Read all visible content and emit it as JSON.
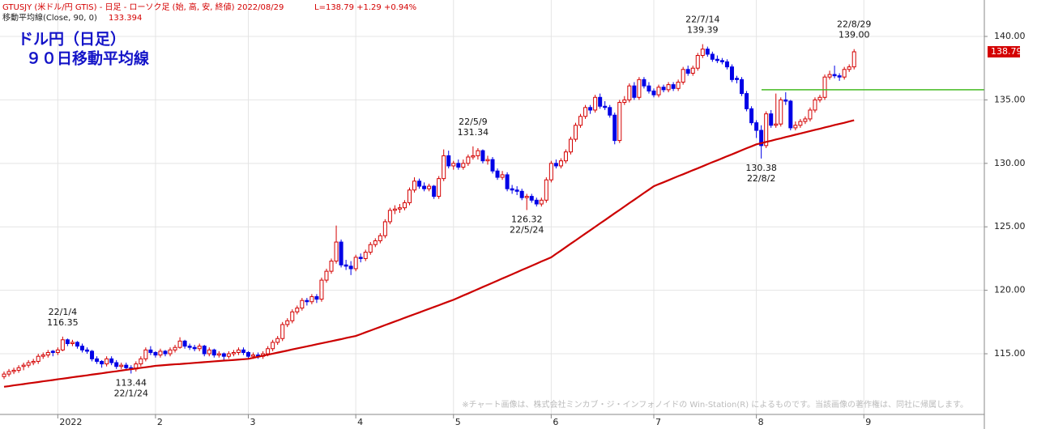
{
  "header": {
    "symbol": "GTUSJY (米ドル/円 GTIS) - 日足 - ローソク足 (始, 高, 安, 終値)  2022/08/29",
    "quote": "L=138.79 +1.29 +0.94%"
  },
  "overlay_title": [
    "ドル円（日足）",
    "９０日移動平均線"
  ],
  "footnote": "※チャート画像は、株式会社ミンカブ・ジ・インフォノイドの Win-Station(R) によるものです。当該画像の著作権は、同社に帰属します。",
  "chart_data": {
    "type": "candlestick",
    "up_color": "#d40000",
    "down_color": "#0000e6",
    "ylim": [
      110.22,
      142.87
    ],
    "yticks": [
      {
        "value": 115,
        "label": "115.00"
      },
      {
        "value": 120,
        "label": "120.00"
      },
      {
        "value": 125,
        "label": "125.00"
      },
      {
        "value": 130,
        "label": "130.00"
      },
      {
        "value": 135,
        "label": "135.00"
      },
      {
        "value": 140,
        "label": "140.00"
      }
    ],
    "grid": true,
    "categories": [
      null,
      null,
      null,
      null,
      null,
      null,
      null,
      null,
      null,
      null,
      null,
      "2022",
      null,
      null,
      null,
      null,
      null,
      null,
      null,
      null,
      null,
      null,
      null,
      null,
      null,
      null,
      null,
      null,
      null,
      null,
      null,
      "2",
      null,
      null,
      null,
      null,
      null,
      null,
      null,
      null,
      null,
      null,
      null,
      null,
      null,
      null,
      null,
      null,
      null,
      null,
      "3",
      null,
      null,
      null,
      null,
      null,
      null,
      null,
      null,
      null,
      null,
      null,
      null,
      null,
      null,
      null,
      null,
      null,
      null,
      null,
      null,
      null,
      "4",
      null,
      null,
      null,
      null,
      null,
      null,
      null,
      null,
      null,
      null,
      null,
      null,
      null,
      null,
      null,
      null,
      null,
      null,
      null,
      "5",
      null,
      null,
      null,
      null,
      null,
      null,
      null,
      null,
      null,
      null,
      null,
      null,
      null,
      null,
      null,
      null,
      null,
      null,
      null,
      "6",
      null,
      null,
      null,
      null,
      null,
      null,
      null,
      null,
      null,
      null,
      null,
      null,
      null,
      null,
      null,
      null,
      null,
      null,
      null,
      null,
      "7",
      null,
      null,
      null,
      null,
      null,
      null,
      null,
      null,
      null,
      null,
      null,
      null,
      null,
      null,
      null,
      null,
      null,
      null,
      null,
      null,
      "8",
      null,
      null,
      null,
      null,
      null,
      null,
      null,
      null,
      null,
      null,
      null,
      null,
      null,
      null,
      null,
      null,
      null,
      null,
      null,
      null,
      null,
      "9"
    ],
    "ohlc": [
      [
        113.2,
        113.6,
        113.0,
        113.4
      ],
      [
        113.4,
        113.8,
        113.2,
        113.6
      ],
      [
        113.6,
        113.9,
        113.4,
        113.7
      ],
      [
        113.7,
        114.1,
        113.5,
        113.9
      ],
      [
        114.0,
        114.3,
        113.7,
        114.1
      ],
      [
        114.1,
        114.5,
        113.9,
        114.3
      ],
      [
        114.3,
        114.6,
        114.1,
        114.4
      ],
      [
        114.4,
        115.0,
        114.2,
        114.8
      ],
      [
        114.8,
        115.1,
        114.6,
        114.9
      ],
      [
        114.9,
        115.3,
        114.7,
        115.1
      ],
      [
        115.2,
        115.3,
        114.8,
        115.1
      ],
      [
        115.1,
        115.5,
        114.9,
        115.3
      ],
      [
        115.3,
        116.35,
        115.2,
        116.1
      ],
      [
        116.1,
        116.2,
        115.6,
        115.8
      ],
      [
        115.8,
        116.1,
        115.6,
        115.9
      ],
      [
        115.9,
        116.0,
        115.4,
        115.6
      ],
      [
        115.6,
        115.8,
        115.1,
        115.3
      ],
      [
        115.3,
        115.5,
        115.0,
        115.2
      ],
      [
        115.2,
        115.3,
        114.4,
        114.6
      ],
      [
        114.6,
        114.8,
        114.2,
        114.4
      ],
      [
        114.4,
        114.5,
        113.9,
        114.2
      ],
      [
        114.2,
        114.8,
        114.0,
        114.6
      ],
      [
        114.6,
        114.8,
        114.1,
        114.3
      ],
      [
        114.3,
        114.5,
        113.8,
        114.0
      ],
      [
        114.0,
        114.3,
        113.8,
        114.1
      ],
      [
        114.1,
        114.3,
        113.7,
        113.9
      ],
      [
        113.9,
        114.1,
        113.44,
        113.8
      ],
      [
        113.8,
        114.4,
        113.6,
        114.2
      ],
      [
        114.2,
        114.8,
        114.0,
        114.6
      ],
      [
        114.6,
        115.5,
        114.4,
        115.3
      ],
      [
        115.3,
        115.6,
        114.9,
        115.1
      ],
      [
        115.1,
        115.2,
        114.7,
        114.9
      ],
      [
        114.9,
        115.4,
        114.7,
        115.2
      ],
      [
        115.2,
        115.3,
        114.8,
        115.0
      ],
      [
        115.0,
        115.5,
        114.8,
        115.3
      ],
      [
        115.3,
        115.7,
        115.1,
        115.5
      ],
      [
        115.5,
        116.3,
        115.4,
        116.0
      ],
      [
        116.0,
        116.1,
        115.4,
        115.6
      ],
      [
        115.6,
        115.8,
        115.3,
        115.5
      ],
      [
        115.5,
        115.7,
        115.2,
        115.4
      ],
      [
        115.4,
        115.8,
        115.2,
        115.6
      ],
      [
        115.6,
        115.7,
        114.8,
        115.0
      ],
      [
        115.0,
        115.5,
        114.8,
        115.3
      ],
      [
        115.3,
        115.4,
        114.7,
        114.9
      ],
      [
        114.9,
        115.2,
        114.7,
        115.0
      ],
      [
        115.0,
        115.1,
        114.5,
        114.8
      ],
      [
        114.8,
        115.2,
        114.6,
        115.0
      ],
      [
        115.0,
        115.3,
        114.8,
        115.1
      ],
      [
        115.1,
        115.5,
        114.9,
        115.3
      ],
      [
        115.3,
        115.5,
        114.9,
        115.1
      ],
      [
        115.1,
        115.2,
        114.6,
        114.8
      ],
      [
        114.8,
        115.1,
        114.6,
        114.9
      ],
      [
        114.9,
        115.1,
        114.6,
        114.8
      ],
      [
        114.8,
        115.2,
        114.6,
        115.0
      ],
      [
        115.0,
        115.6,
        114.8,
        115.4
      ],
      [
        115.4,
        116.1,
        115.2,
        115.9
      ],
      [
        115.9,
        116.4,
        115.7,
        116.2
      ],
      [
        116.2,
        117.5,
        116.0,
        117.3
      ],
      [
        117.3,
        117.8,
        117.1,
        117.6
      ],
      [
        117.6,
        118.5,
        117.4,
        118.3
      ],
      [
        118.3,
        118.8,
        118.1,
        118.6
      ],
      [
        118.6,
        119.4,
        118.4,
        119.2
      ],
      [
        119.2,
        119.4,
        118.8,
        119.1
      ],
      [
        119.1,
        119.7,
        118.9,
        119.5
      ],
      [
        119.5,
        119.7,
        119.0,
        119.3
      ],
      [
        119.3,
        121.0,
        119.1,
        120.8
      ],
      [
        120.8,
        121.7,
        120.6,
        121.5
      ],
      [
        121.5,
        122.5,
        121.3,
        122.3
      ],
      [
        122.3,
        125.1,
        122.1,
        123.8
      ],
      [
        123.8,
        124.0,
        121.8,
        122.0
      ],
      [
        122.0,
        122.4,
        121.6,
        121.9
      ],
      [
        121.9,
        122.3,
        121.2,
        121.7
      ],
      [
        121.7,
        122.8,
        121.5,
        122.6
      ],
      [
        122.6,
        122.9,
        122.2,
        122.5
      ],
      [
        122.5,
        123.2,
        122.3,
        123.0
      ],
      [
        123.0,
        123.8,
        122.8,
        123.6
      ],
      [
        123.6,
        124.1,
        123.4,
        123.9
      ],
      [
        123.9,
        124.5,
        123.7,
        124.3
      ],
      [
        124.3,
        125.6,
        124.1,
        125.4
      ],
      [
        125.4,
        126.5,
        125.2,
        126.3
      ],
      [
        126.3,
        126.7,
        126.0,
        126.4
      ],
      [
        126.4,
        126.8,
        126.1,
        126.5
      ],
      [
        126.5,
        127.1,
        126.3,
        126.9
      ],
      [
        126.9,
        128.1,
        126.7,
        127.9
      ],
      [
        127.9,
        128.9,
        127.7,
        128.6
      ],
      [
        128.6,
        128.8,
        128.0,
        128.2
      ],
      [
        128.2,
        128.5,
        127.8,
        128.0
      ],
      [
        128.0,
        128.4,
        127.8,
        128.2
      ],
      [
        128.2,
        128.3,
        127.2,
        127.4
      ],
      [
        127.4,
        129.0,
        127.2,
        128.8
      ],
      [
        128.8,
        131.1,
        128.6,
        130.6
      ],
      [
        130.6,
        131.0,
        129.6,
        129.8
      ],
      [
        129.8,
        130.2,
        129.5,
        130.0
      ],
      [
        130.0,
        130.3,
        129.5,
        129.7
      ],
      [
        129.7,
        130.3,
        129.5,
        130.0
      ],
      [
        130.0,
        130.7,
        129.8,
        130.5
      ],
      [
        130.5,
        131.34,
        130.3,
        130.6
      ],
      [
        130.6,
        131.2,
        130.3,
        131.0
      ],
      [
        131.0,
        131.1,
        130.0,
        130.2
      ],
      [
        130.2,
        130.6,
        129.9,
        130.3
      ],
      [
        130.3,
        130.5,
        129.2,
        129.4
      ],
      [
        129.4,
        129.6,
        128.7,
        128.9
      ],
      [
        128.9,
        129.4,
        128.7,
        129.1
      ],
      [
        129.1,
        129.3,
        127.8,
        128.0
      ],
      [
        128.0,
        128.3,
        127.6,
        127.9
      ],
      [
        127.9,
        128.2,
        127.5,
        127.8
      ],
      [
        127.8,
        128.0,
        127.1,
        127.3
      ],
      [
        127.3,
        127.6,
        126.32,
        127.4
      ],
      [
        127.4,
        127.6,
        126.9,
        127.1
      ],
      [
        127.1,
        127.3,
        126.6,
        126.8
      ],
      [
        126.8,
        127.3,
        126.6,
        127.1
      ],
      [
        127.1,
        128.9,
        126.9,
        128.7
      ],
      [
        128.7,
        130.2,
        128.5,
        130.0
      ],
      [
        130.0,
        130.3,
        129.6,
        129.8
      ],
      [
        129.8,
        130.4,
        129.6,
        130.2
      ],
      [
        130.2,
        131.1,
        130.0,
        130.9
      ],
      [
        130.9,
        132.1,
        130.7,
        131.9
      ],
      [
        131.9,
        133.2,
        131.7,
        133.0
      ],
      [
        133.0,
        133.9,
        132.8,
        133.7
      ],
      [
        133.7,
        134.6,
        133.5,
        134.4
      ],
      [
        134.4,
        134.6,
        133.9,
        134.2
      ],
      [
        134.2,
        135.4,
        134.0,
        135.2
      ],
      [
        135.2,
        135.5,
        134.3,
        134.5
      ],
      [
        134.5,
        134.9,
        134.2,
        134.4
      ],
      [
        134.4,
        134.6,
        133.6,
        133.8
      ],
      [
        133.8,
        134.0,
        131.5,
        131.8
      ],
      [
        131.8,
        135.0,
        131.6,
        134.8
      ],
      [
        134.8,
        135.3,
        134.6,
        135.0
      ],
      [
        135.0,
        136.3,
        134.8,
        136.1
      ],
      [
        136.1,
        136.4,
        135.0,
        135.2
      ],
      [
        135.2,
        136.8,
        135.0,
        136.6
      ],
      [
        136.6,
        136.8,
        135.9,
        136.1
      ],
      [
        136.1,
        136.4,
        135.5,
        135.7
      ],
      [
        135.7,
        135.9,
        135.2,
        135.4
      ],
      [
        135.4,
        136.2,
        135.2,
        136.0
      ],
      [
        136.0,
        136.2,
        135.6,
        135.8
      ],
      [
        135.8,
        136.4,
        135.6,
        136.2
      ],
      [
        136.2,
        136.4,
        135.7,
        135.9
      ],
      [
        135.9,
        136.6,
        135.7,
        136.4
      ],
      [
        136.4,
        137.6,
        136.2,
        137.4
      ],
      [
        137.4,
        137.7,
        136.9,
        137.1
      ],
      [
        137.1,
        137.7,
        136.9,
        137.5
      ],
      [
        137.5,
        138.7,
        137.3,
        138.5
      ],
      [
        138.5,
        139.39,
        138.3,
        139.0
      ],
      [
        139.0,
        139.2,
        138.4,
        138.6
      ],
      [
        138.6,
        138.8,
        138.0,
        138.2
      ],
      [
        138.2,
        138.5,
        137.9,
        138.1
      ],
      [
        138.1,
        138.3,
        137.8,
        138.0
      ],
      [
        138.0,
        138.2,
        137.4,
        137.6
      ],
      [
        137.6,
        137.8,
        136.4,
        136.6
      ],
      [
        136.7,
        136.9,
        136.3,
        136.6
      ],
      [
        136.6,
        136.8,
        135.3,
        135.5
      ],
      [
        135.5,
        135.7,
        134.1,
        134.3
      ],
      [
        134.3,
        134.5,
        133.0,
        133.2
      ],
      [
        133.2,
        133.4,
        132.0,
        132.6
      ],
      [
        132.6,
        133.0,
        130.38,
        131.4
      ],
      [
        131.4,
        134.1,
        131.2,
        133.9
      ],
      [
        133.9,
        134.2,
        132.8,
        133.0
      ],
      [
        133.0,
        135.5,
        132.8,
        133.1
      ],
      [
        133.1,
        135.2,
        132.9,
        135.0
      ],
      [
        135.0,
        135.6,
        134.6,
        134.9
      ],
      [
        134.9,
        135.0,
        132.6,
        132.8
      ],
      [
        132.8,
        133.3,
        132.6,
        133.0
      ],
      [
        133.0,
        133.5,
        132.8,
        133.3
      ],
      [
        133.3,
        133.7,
        133.1,
        133.5
      ],
      [
        133.5,
        134.4,
        133.3,
        134.2
      ],
      [
        134.2,
        135.2,
        134.0,
        135.0
      ],
      [
        135.0,
        135.4,
        134.8,
        135.2
      ],
      [
        135.2,
        137.0,
        135.0,
        136.8
      ],
      [
        136.8,
        137.3,
        136.6,
        137.0
      ],
      [
        137.0,
        137.7,
        136.7,
        136.9
      ],
      [
        136.9,
        137.1,
        136.5,
        136.8
      ],
      [
        136.8,
        137.6,
        136.6,
        137.4
      ],
      [
        137.4,
        137.8,
        137.2,
        137.6
      ],
      [
        137.6,
        139.0,
        137.4,
        138.79
      ],
      null,
      null
    ],
    "ma": {
      "name": "移動平均線(Close, 90, 0)",
      "color": "#cc0000",
      "values": [
        112.4,
        112.45,
        112.51,
        112.56,
        112.61,
        112.67,
        112.72,
        112.77,
        112.83,
        112.88,
        112.93,
        112.99,
        113.04,
        113.09,
        113.15,
        113.2,
        113.25,
        113.3,
        113.36,
        113.41,
        113.46,
        113.52,
        113.57,
        113.62,
        113.68,
        113.73,
        113.78,
        113.84,
        113.89,
        113.94,
        113.99,
        114.05,
        114.08,
        114.11,
        114.14,
        114.17,
        114.19,
        114.22,
        114.25,
        114.28,
        114.31,
        114.34,
        114.37,
        114.4,
        114.43,
        114.46,
        114.48,
        114.51,
        114.54,
        114.57,
        114.6,
        114.68,
        114.76,
        114.85,
        114.93,
        115.01,
        115.09,
        115.17,
        115.25,
        115.34,
        115.42,
        115.5,
        115.58,
        115.66,
        115.75,
        115.83,
        115.91,
        115.99,
        116.07,
        116.15,
        116.24,
        116.32,
        116.4,
        116.54,
        116.69,
        116.83,
        116.97,
        117.11,
        117.26,
        117.4,
        117.54,
        117.68,
        117.83,
        117.97,
        118.11,
        118.25,
        118.4,
        118.54,
        118.68,
        118.82,
        118.97,
        119.11,
        119.25,
        119.42,
        119.59,
        119.75,
        119.92,
        120.09,
        120.26,
        120.42,
        120.59,
        120.76,
        120.93,
        121.09,
        121.26,
        121.43,
        121.6,
        121.76,
        121.93,
        122.1,
        122.27,
        122.43,
        122.6,
        122.87,
        123.13,
        123.4,
        123.67,
        123.93,
        124.2,
        124.47,
        124.73,
        125.0,
        125.27,
        125.53,
        125.8,
        126.07,
        126.33,
        126.6,
        126.87,
        127.13,
        127.4,
        127.67,
        127.93,
        128.2,
        128.36,
        128.51,
        128.67,
        128.83,
        128.99,
        129.14,
        129.3,
        129.46,
        129.61,
        129.77,
        129.93,
        130.09,
        130.24,
        130.4,
        130.56,
        130.71,
        130.87,
        131.03,
        131.19,
        131.34,
        131.5,
        131.59,
        131.69,
        131.78,
        131.88,
        131.97,
        132.07,
        132.16,
        132.26,
        132.35,
        132.45,
        132.54,
        132.64,
        132.73,
        132.83,
        132.92,
        133.02,
        133.11,
        133.2,
        133.3,
        133.394,
        null,
        null
      ]
    },
    "hline": {
      "value": 135.8,
      "color": "#44bb22"
    },
    "annotations": [
      {
        "date": "22/1/4",
        "value": 116.35
      },
      {
        "date": "22/1/24",
        "value": 113.44
      },
      {
        "date": "22/5/9",
        "value": 131.34
      },
      {
        "date": "22/5/24",
        "value": 126.32
      },
      {
        "date": "22/7/14",
        "value": 139.39
      },
      {
        "date": "22/8/2",
        "value": 130.38
      },
      {
        "date": "22/8/29",
        "value": 139,
        "value_label": "139.00"
      }
    ]
  }
}
